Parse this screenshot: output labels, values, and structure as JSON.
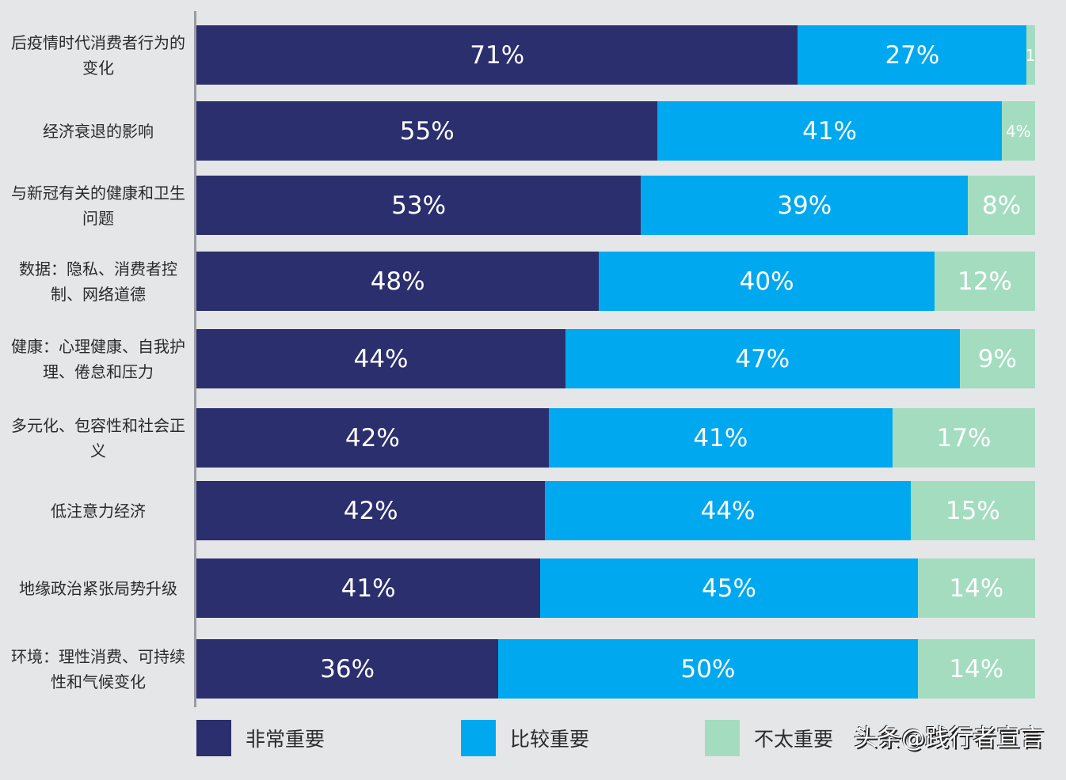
{
  "chart_data": {
    "type": "bar",
    "orientation": "horizontal",
    "stacked": true,
    "categories": [
      "后疫情时代消费者行为的变化",
      "经济衰退的影响",
      "与新冠有关的健康和卫生问题",
      "数据：隐私、消费者控制、网络道德",
      "健康：心理健康、自我护理、倦怠和压力",
      "多元化、包容性和社会正义",
      "低注意力经济",
      "地缘政治紧张局势升级",
      "环境：理性消费、可持续性和气候变化"
    ],
    "series": [
      {
        "name": "非常重要",
        "color": "#2b2f6e",
        "values": [
          71,
          55,
          53,
          48,
          44,
          42,
          42,
          41,
          36
        ]
      },
      {
        "name": "比较重要",
        "color": "#00a8ef",
        "values": [
          27,
          41,
          39,
          40,
          47,
          41,
          44,
          45,
          50
        ]
      },
      {
        "name": "不太重要",
        "color": "#a4dcc0",
        "values": [
          1,
          4,
          8,
          12,
          9,
          17,
          15,
          14,
          14
        ]
      }
    ],
    "unit": "%",
    "legend_position": "bottom",
    "grid": false
  },
  "watermark": "头条@践行者宣言"
}
